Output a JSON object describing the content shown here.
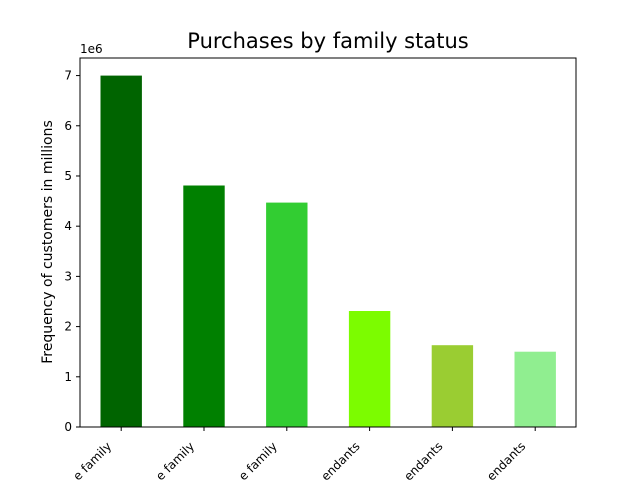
{
  "chart_data": {
    "type": "bar",
    "title": "Purchases by family status",
    "xlabel": "",
    "ylabel": "Frequency of customers in millions",
    "offset_label": "1e6",
    "ylim": [
      0,
      7350000
    ],
    "yticks": [
      0,
      1000000,
      2000000,
      3000000,
      4000000,
      5000000,
      6000000,
      7000000
    ],
    "ytick_labels": [
      "0",
      "1",
      "2",
      "3",
      "4",
      "5",
      "6",
      "7"
    ],
    "categories": [
      "Middle family",
      "Large family",
      "Single family",
      "Young dependants",
      "Old dependants",
      "Other dependants"
    ],
    "category_labels_visible": [
      "e family",
      "e family",
      "e family",
      "endants",
      "endants",
      "endants"
    ],
    "values": [
      7000000,
      4810000,
      4470000,
      2310000,
      1630000,
      1500000
    ],
    "colors": [
      "#006400",
      "#008000",
      "#32cd32",
      "#7cfc00",
      "#9acd32",
      "#90ee90"
    ]
  }
}
